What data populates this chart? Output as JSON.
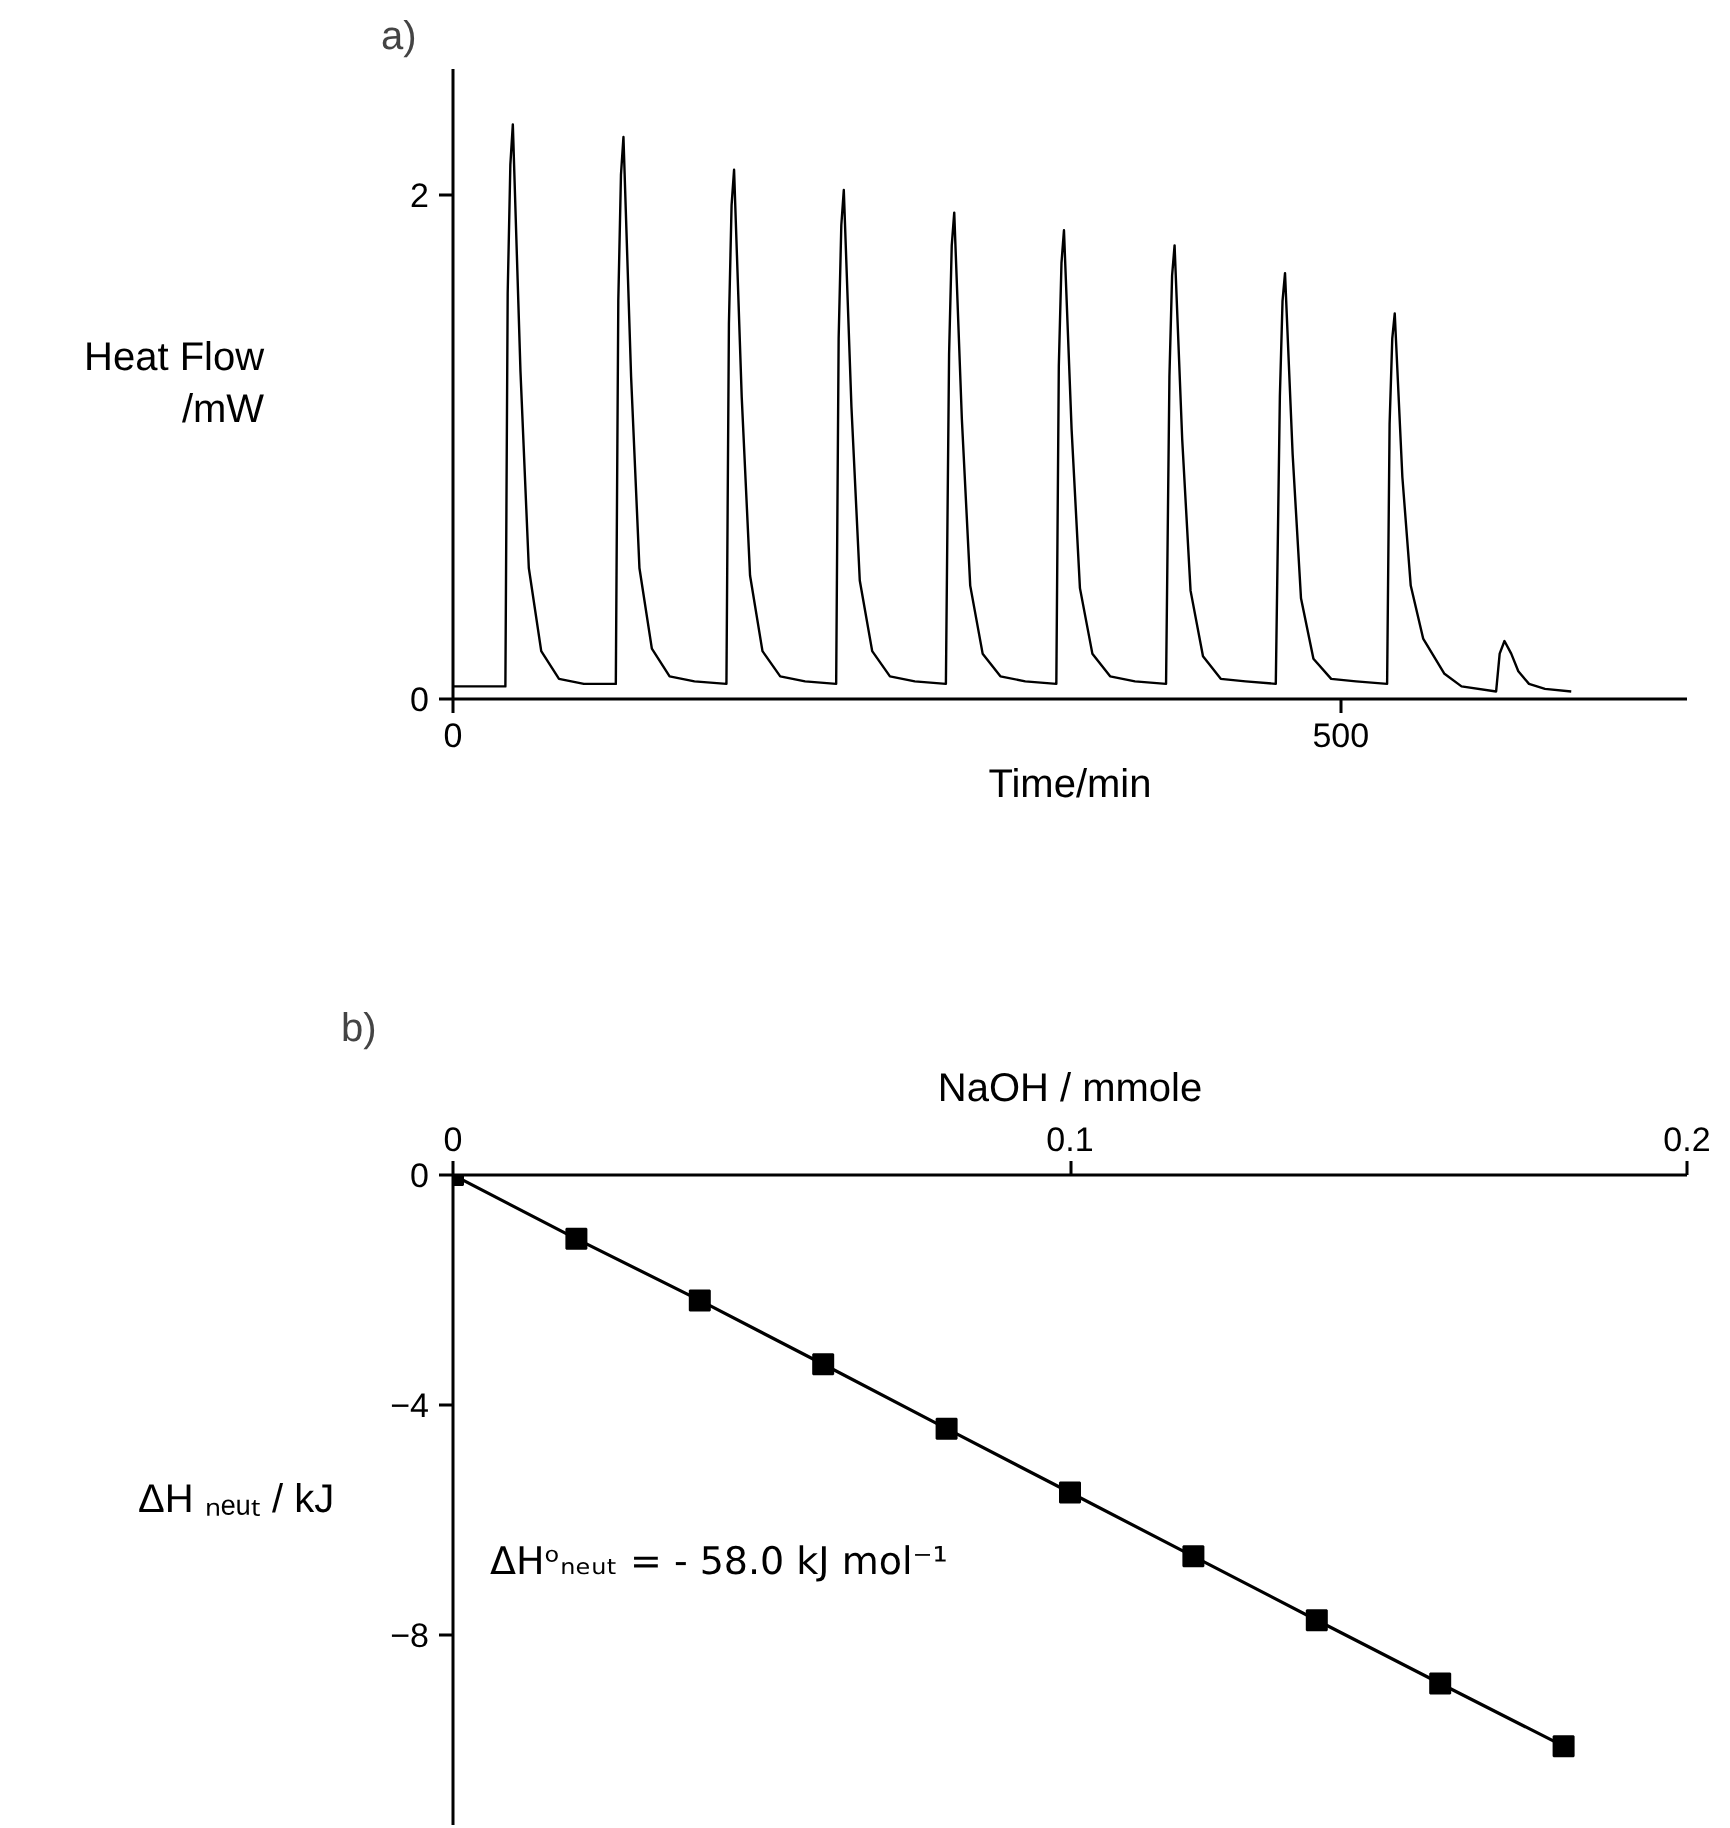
{
  "chart_data": [
    {
      "type": "line",
      "title": "a)",
      "xlabel": "Time/min",
      "ylabel": "Heat Flow\n/mW",
      "color": "#000000",
      "x": [
        0,
        29.5,
        30.8,
        32.3,
        33.7,
        38.0,
        42.7,
        49.7,
        59.7,
        73.7,
        91.7,
        93.1,
        94.6,
        96.0,
        100.3,
        105.0,
        112.0,
        122.0,
        136.0,
        154.0,
        155.4,
        156.9,
        158.3,
        162.6,
        167.3,
        174.3,
        184.3,
        198.3,
        215.8,
        217.2,
        218.7,
        220.1,
        224.4,
        229.1,
        236.1,
        246.1,
        260.1,
        277.6,
        279.4,
        280.9,
        282.3,
        286.6,
        291.3,
        298.3,
        308.3,
        322.3,
        339.8,
        341.2,
        342.7,
        344.1,
        348.4,
        353.1,
        360.1,
        370.1,
        384.1,
        401.6,
        403.5,
        405.0,
        406.4,
        410.7,
        415.4,
        422.4,
        432.4,
        446.4,
        463.4,
        465.7,
        467.2,
        468.6,
        472.9,
        477.6,
        484.6,
        494.6,
        508.6,
        526.1,
        527.5,
        529.0,
        530.4,
        534.7,
        539.4,
        546.4,
        558.4,
        568.0,
        587.5,
        589.5,
        592.2,
        596.0,
        600.0,
        606.0,
        615.0,
        629.8
      ],
      "values": [
        0.05,
        0.05,
        1.61,
        2.12,
        2.28,
        1.3,
        0.52,
        0.19,
        0.08,
        0.06,
        0.06,
        1.58,
        2.08,
        2.23,
        1.28,
        0.52,
        0.2,
        0.09,
        0.07,
        0.06,
        1.49,
        1.96,
        2.1,
        1.2,
        0.49,
        0.19,
        0.09,
        0.07,
        0.06,
        1.43,
        1.88,
        2.02,
        1.16,
        0.47,
        0.19,
        0.09,
        0.07,
        0.06,
        1.37,
        1.8,
        1.93,
        1.11,
        0.45,
        0.18,
        0.09,
        0.07,
        0.06,
        1.32,
        1.73,
        1.86,
        1.07,
        0.44,
        0.18,
        0.09,
        0.07,
        0.06,
        1.28,
        1.68,
        1.8,
        1.03,
        0.43,
        0.17,
        0.08,
        0.07,
        0.06,
        1.2,
        1.58,
        1.69,
        0.97,
        0.4,
        0.16,
        0.08,
        0.07,
        0.06,
        1.09,
        1.43,
        1.53,
        0.88,
        0.45,
        0.24,
        0.1,
        0.05,
        0.03,
        0.18,
        0.23,
        0.18,
        0.11,
        0.06,
        0.04,
        0.03
      ],
      "xlim": [
        0,
        695
      ],
      "ylim": [
        0,
        2.5
      ],
      "xticks": [
        0,
        500
      ],
      "yticks": [
        0,
        2
      ],
      "grid": false
    },
    {
      "type": "line",
      "title": "b)",
      "xlabel": "NaOH / mmole",
      "ylabel": "ΔH ₙₑᵤₜ / kJ",
      "color": "#000000",
      "marker": "square",
      "x": [
        0,
        0.02,
        0.04,
        0.06,
        0.08,
        0.1,
        0.12,
        0.14,
        0.16,
        0.18
      ],
      "values": [
        0,
        -1.11,
        -2.18,
        -3.29,
        -4.41,
        -5.52,
        -6.63,
        -7.74,
        -8.84,
        -9.93
      ],
      "xlim": [
        0,
        0.2
      ],
      "ylim": [
        -11.3,
        0
      ],
      "xticks": [
        0,
        0.1,
        0.2
      ],
      "yticks": [
        0,
        -4,
        -8
      ],
      "grid": false,
      "annotations": [
        "ΔHᵒₙₑᵤₜ = - 58.0 kJ mol⁻¹"
      ]
    }
  ]
}
